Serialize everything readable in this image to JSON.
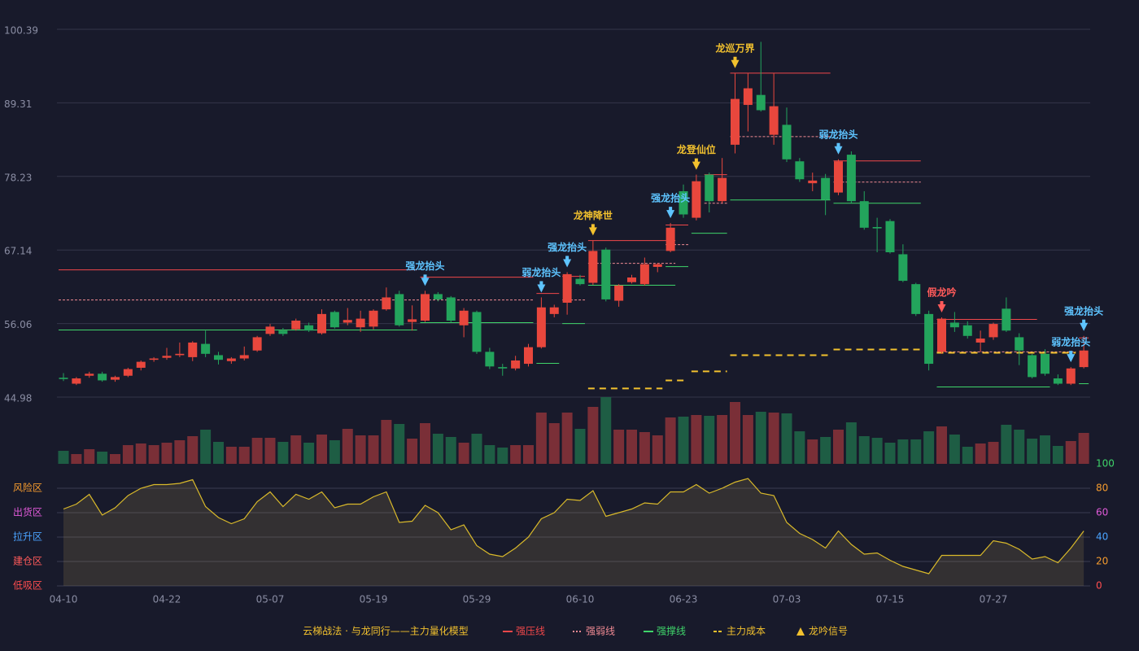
{
  "chart_data": {
    "type": "candlestick",
    "title": "云梯战法 · 与龙同行——主力量化模型",
    "categories": [
      "04-10",
      null,
      null,
      null,
      null,
      null,
      null,
      null,
      "04-22",
      null,
      null,
      null,
      null,
      null,
      null,
      null,
      "05-07",
      null,
      null,
      null,
      null,
      null,
      null,
      null,
      "05-19",
      null,
      null,
      null,
      null,
      null,
      null,
      null,
      "05-29",
      null,
      null,
      null,
      null,
      null,
      null,
      null,
      "06-10",
      null,
      null,
      null,
      null,
      null,
      null,
      null,
      "06-23",
      null,
      null,
      null,
      null,
      null,
      null,
      null,
      "07-03",
      null,
      null,
      null,
      null,
      null,
      null,
      null,
      "07-15",
      null,
      null,
      null,
      null,
      null,
      null,
      null,
      "07-27",
      null,
      null,
      null,
      null,
      null,
      null,
      null
    ],
    "open": [
      47.9,
      47.0,
      48.2,
      48.5,
      47.6,
      48.2,
      49.4,
      50.6,
      50.9,
      51.3,
      51.0,
      53.0,
      51.3,
      50.4,
      50.8,
      52.0,
      54.5,
      55.0,
      55.2,
      55.8,
      54.6,
      57.8,
      56.2,
      55.5,
      55.6,
      58.2,
      60.5,
      56.3,
      56.5,
      60.5,
      60.0,
      55.8,
      57.8,
      51.8,
      49.5,
      49.3,
      50.0,
      52.5,
      57.5,
      59.2,
      62.8,
      62.2,
      67.2,
      59.5,
      62.3,
      62.0,
      64.6,
      67.0,
      76.0,
      72.0,
      78.5,
      74.5,
      83.0,
      89.0,
      90.5,
      84.5,
      86.0,
      80.5,
      77.2,
      78.0,
      75.8,
      81.5,
      74.5,
      70.6,
      71.5,
      66.5,
      62.0,
      57.5,
      51.8,
      56.2,
      55.8,
      53.2,
      54.0,
      58.3,
      54.0,
      51.3,
      51.5,
      47.8,
      47.0,
      49.5
    ],
    "high": [
      48.6,
      48.0,
      48.8,
      48.8,
      48.2,
      49.4,
      50.5,
      51.0,
      52.4,
      53.2,
      53.4,
      55.0,
      51.8,
      51.0,
      52.6,
      54.2,
      56.0,
      55.4,
      56.8,
      56.2,
      58.2,
      58.0,
      58.4,
      58.0,
      58.2,
      61.5,
      61.0,
      58.8,
      61.0,
      60.8,
      60.2,
      58.4,
      58.0,
      52.4,
      50.0,
      51.2,
      53.0,
      60.0,
      58.9,
      63.8,
      63.4,
      68.6,
      67.5,
      62.0,
      63.4,
      66.0,
      65.2,
      71.2,
      77.0,
      78.5,
      78.8,
      81.0,
      93.8,
      93.8,
      98.5,
      93.8,
      88.6,
      81.0,
      78.8,
      78.6,
      80.8,
      82.0,
      76.0,
      72.0,
      71.8,
      68.0,
      62.2,
      58.0,
      57.0,
      57.8,
      56.4,
      55.0,
      56.2,
      60.0,
      54.6,
      51.5,
      52.2,
      48.4,
      49.5,
      54.2
    ],
    "low": [
      47.4,
      46.8,
      47.9,
      47.3,
      47.3,
      48.0,
      49.0,
      50.3,
      50.6,
      51.0,
      50.4,
      51.0,
      49.9,
      50.0,
      50.5,
      51.8,
      54.2,
      54.2,
      55.0,
      54.8,
      54.4,
      55.3,
      55.8,
      54.8,
      55.2,
      58.0,
      55.6,
      55.0,
      56.3,
      59.4,
      56.2,
      54.0,
      51.5,
      49.2,
      48.2,
      49.0,
      49.6,
      52.3,
      57.0,
      57.4,
      61.8,
      61.9,
      59.4,
      58.6,
      62.1,
      61.8,
      63.8,
      66.8,
      72.0,
      71.6,
      72.8,
      74.2,
      81.7,
      85.0,
      88.0,
      83.0,
      80.4,
      77.4,
      76.0,
      72.4,
      75.4,
      74.2,
      70.2,
      66.8,
      66.6,
      62.3,
      57.2,
      49.0,
      51.5,
      54.8,
      53.8,
      51.8,
      53.6,
      54.8,
      49.8,
      47.8,
      48.2,
      46.8,
      46.8,
      49.3
    ],
    "close": [
      47.7,
      47.8,
      48.5,
      47.5,
      48.0,
      49.2,
      50.3,
      50.8,
      51.2,
      51.5,
      53.2,
      51.5,
      50.6,
      50.8,
      51.3,
      54.0,
      55.6,
      54.5,
      56.5,
      55.0,
      57.5,
      55.5,
      56.6,
      56.8,
      58.0,
      60.0,
      55.8,
      56.7,
      60.5,
      59.7,
      56.5,
      58.0,
      51.8,
      49.6,
      49.3,
      50.5,
      52.5,
      58.5,
      58.5,
      63.5,
      62.0,
      67.0,
      59.7,
      61.8,
      63.0,
      65.0,
      65.0,
      70.5,
      72.5,
      77.5,
      74.5,
      78.0,
      89.9,
      91.5,
      88.2,
      88.8,
      80.8,
      77.8,
      77.6,
      74.7,
      80.5,
      74.5,
      70.5,
      70.4,
      66.8,
      62.5,
      57.5,
      50.0,
      56.8,
      55.5,
      54.2,
      53.8,
      56.0,
      55.0,
      52.0,
      48.0,
      48.5,
      47.0,
      49.3,
      52.0
    ],
    "volume": [
      16,
      12,
      18,
      15,
      12,
      23,
      25,
      23,
      26,
      29,
      34,
      42,
      27,
      21,
      21,
      32,
      32,
      27,
      35,
      26,
      36,
      29,
      43,
      35,
      35,
      54,
      49,
      31,
      50,
      37,
      33,
      26,
      37,
      23,
      20,
      23,
      23,
      63,
      50,
      63,
      43,
      70,
      82,
      42,
      42,
      39,
      35,
      57,
      58,
      60,
      59,
      60,
      76,
      60,
      64,
      63,
      62,
      40,
      30,
      33,
      42,
      51,
      34,
      32,
      26,
      30,
      30,
      40,
      46,
      36,
      21,
      25,
      27,
      48,
      42,
      31,
      35,
      22,
      28,
      38
    ],
    "up_color": "#e8473d",
    "down_color": "#23a45c",
    "volume_up_color": "#7a2f37",
    "volume_down_color": "#1e5d44",
    "ylim": [
      44.98,
      100.39
    ],
    "yticks": [
      44.98,
      56.06,
      67.14,
      78.23,
      89.31,
      100.39
    ],
    "grid": true,
    "levels": [
      {
        "name": "强压线",
        "color": "#f0474a",
        "style": "solid",
        "segments": [
          {
            "from": 0,
            "to": 27,
            "value": 64.15
          },
          {
            "from": 28,
            "to": 36,
            "value": 63.05
          },
          {
            "from": 37,
            "to": 38,
            "value": 60.6
          },
          {
            "from": 39,
            "to": 40,
            "value": 63.17
          },
          {
            "from": 41,
            "to": 47,
            "value": 68.56
          },
          {
            "from": 47,
            "to": 48,
            "value": 70.9
          },
          {
            "from": 50,
            "to": 51,
            "value": 78.5
          },
          {
            "from": 52,
            "to": 59,
            "value": 93.78
          },
          {
            "from": 60,
            "to": 66,
            "value": 80.56
          },
          {
            "from": 68,
            "to": 75,
            "value": 56.68
          },
          {
            "from": 79,
            "to": 79,
            "value": 53.9
          }
        ]
      },
      {
        "name": "强弱线",
        "color": "#f08a93",
        "style": "dotted",
        "segments": [
          {
            "from": 0,
            "to": 36,
            "value": 59.62
          },
          {
            "from": 39,
            "to": 40,
            "value": 59.62
          },
          {
            "from": 41,
            "to": 47,
            "value": 65.13
          },
          {
            "from": 47,
            "to": 48,
            "value": 67.95
          },
          {
            "from": 50,
            "to": 51,
            "value": 74.19
          },
          {
            "from": 52,
            "to": 59,
            "value": 84.23
          },
          {
            "from": 60,
            "to": 66,
            "value": 77.37
          },
          {
            "from": 68,
            "to": 78,
            "value": 51.8
          }
        ]
      },
      {
        "name": "强撑线",
        "color": "#3fd46a",
        "style": "solid",
        "segments": [
          {
            "from": 0,
            "to": 27,
            "value": 55.09
          },
          {
            "from": 28,
            "to": 36,
            "value": 56.19
          },
          {
            "from": 37,
            "to": 38,
            "value": 50.07
          },
          {
            "from": 39,
            "to": 40,
            "value": 56.06
          },
          {
            "from": 41,
            "to": 47,
            "value": 61.83
          },
          {
            "from": 47,
            "to": 48,
            "value": 64.64
          },
          {
            "from": 49,
            "to": 51,
            "value": 69.66
          },
          {
            "from": 52,
            "to": 59,
            "value": 74.68
          },
          {
            "from": 60,
            "to": 66,
            "value": 74.19
          },
          {
            "from": 68,
            "to": 76,
            "value": 46.52
          },
          {
            "from": 79,
            "to": 79,
            "value": 47.0
          }
        ]
      },
      {
        "name": "主力成本",
        "color": "#f2c12e",
        "style": "dashed",
        "segments": [
          {
            "from": 41,
            "to": 46,
            "value": 46.28
          },
          {
            "from": 47,
            "to": 48,
            "value": 47.5
          },
          {
            "from": 49,
            "to": 51,
            "value": 48.85
          },
          {
            "from": 52,
            "to": 59,
            "value": 51.3
          },
          {
            "from": 60,
            "to": 66,
            "value": 52.15
          },
          {
            "from": 68,
            "to": 78,
            "value": 51.66
          }
        ]
      }
    ],
    "signal_legend": {
      "name": "龙吟信号",
      "color": "#f2c12e"
    },
    "signals": [
      {
        "index": 28,
        "label": "强龙抬头",
        "color": "#5ec4ff"
      },
      {
        "index": 37,
        "label": "弱龙抬头",
        "color": "#5ec4ff"
      },
      {
        "index": 39,
        "label": "强龙抬头",
        "color": "#5ec4ff"
      },
      {
        "index": 41,
        "label": "龙神降世",
        "color": "#f2c12e"
      },
      {
        "index": 47,
        "label": "强龙抬头",
        "color": "#5ec4ff"
      },
      {
        "index": 49,
        "label": "龙登仙位",
        "color": "#f2c12e"
      },
      {
        "index": 52,
        "label": "龙巡万界",
        "color": "#f2c12e"
      },
      {
        "index": 60,
        "label": "弱龙抬头",
        "color": "#5ec4ff"
      },
      {
        "index": 68,
        "label": "假龙吟",
        "color": "#ff5a5a"
      },
      {
        "index": 78,
        "label": "弱龙抬头",
        "color": "#5ec4ff"
      },
      {
        "index": 79,
        "label": "强龙抬头",
        "color": "#5ec4ff"
      }
    ],
    "indicator": {
      "values": [
        63,
        67,
        75,
        58,
        64,
        74,
        80,
        83,
        83,
        84,
        87,
        65,
        56,
        51,
        55,
        69,
        77,
        65,
        75,
        71,
        77,
        64,
        67,
        67,
        73,
        77,
        52,
        53,
        66,
        60,
        46,
        50,
        33,
        26,
        24,
        31,
        40,
        55,
        60,
        71,
        70,
        78,
        57,
        60,
        63,
        68,
        67,
        77,
        77,
        83,
        76,
        80,
        85,
        88,
        76,
        74,
        52,
        43,
        38,
        31,
        45,
        34,
        26,
        27,
        21,
        16,
        13,
        10,
        25,
        25,
        25,
        25,
        37,
        35,
        30,
        22,
        24,
        19,
        31,
        45
      ],
      "color": "#d9b92a",
      "ylim": [
        0,
        100
      ],
      "yticks": [
        0,
        20,
        40,
        60,
        80,
        100
      ],
      "tick_colors": [
        "#ff4d4f",
        "#f59b2e",
        "#4aa3ff",
        "#e05ad8",
        "#f59b2e",
        "#3fd46a"
      ],
      "zones": [
        "低吸区",
        "建仓区",
        "拉升区",
        "出货区",
        "风险区"
      ],
      "zone_colors": [
        "#ff4d4f",
        "#ff5a5a",
        "#4aa3ff",
        "#e05ad8",
        "#f59b2e"
      ]
    }
  }
}
